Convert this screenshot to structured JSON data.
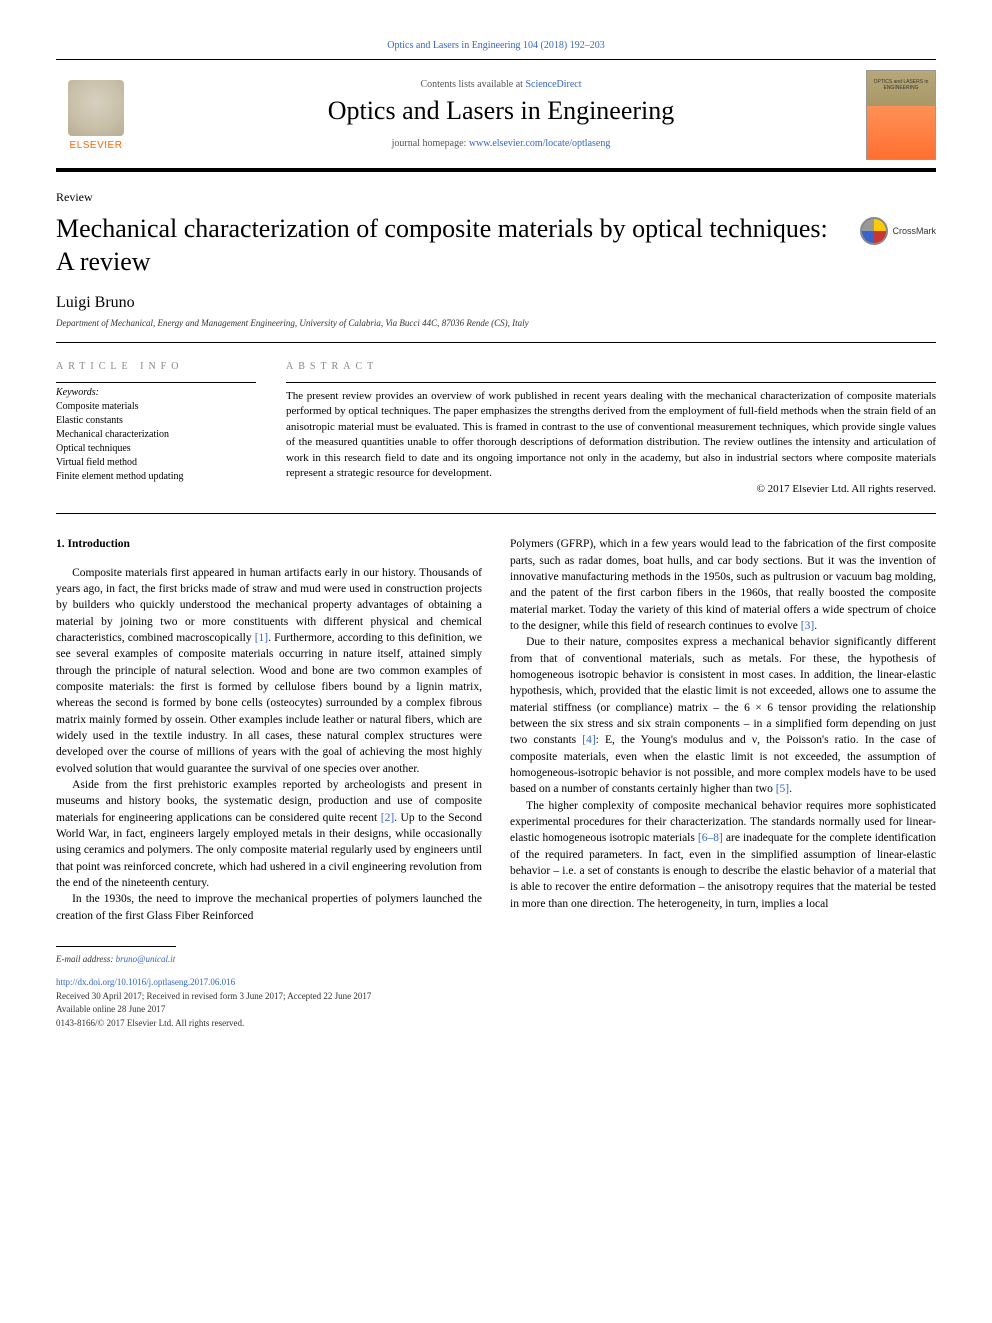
{
  "top_citation": "Optics and Lasers in Engineering 104 (2018) 192–203",
  "header": {
    "contents_prefix": "Contents lists available at ",
    "contents_link": "ScienceDirect",
    "journal_name": "Optics and Lasers in Engineering",
    "homepage_prefix": "journal homepage: ",
    "homepage_link": "www.elsevier.com/locate/optlaseng",
    "publisher": "ELSEVIER"
  },
  "article": {
    "type": "Review",
    "title": "Mechanical characterization of composite materials by optical techniques: A review",
    "author": "Luigi Bruno",
    "affiliation": "Department of Mechanical, Energy and Management Engineering, University of Calabria, Via Bucci 44C, 87036 Rende (CS), Italy",
    "crossmark": "CrossMark"
  },
  "info": {
    "label": "ARTICLE INFO",
    "keywords_label": "Keywords:",
    "keywords": [
      "Composite materials",
      "Elastic constants",
      "Mechanical characterization",
      "Optical techniques",
      "Virtual field method",
      "Finite element method updating"
    ]
  },
  "abstract": {
    "label": "ABSTRACT",
    "text": "The present review provides an overview of work published in recent years dealing with the mechanical characterization of composite materials performed by optical techniques. The paper emphasizes the strengths derived from the employment of full-field methods when the strain field of an anisotropic material must be evaluated. This is framed in contrast to the use of conventional measurement techniques, which provide single values of the measured quantities unable to offer thorough descriptions of deformation distribution. The review outlines the intensity and articulation of work in this research field to date and its ongoing importance not only in the academy, but also in industrial sectors where composite materials represent a strategic resource for development.",
    "copyright": "© 2017 Elsevier Ltd. All rights reserved."
  },
  "body": {
    "section1_heading": "1.  Introduction",
    "left_paragraphs": [
      "Composite materials first appeared in human artifacts early in our history. Thousands of years ago, in fact, the first bricks made of straw and mud were used in construction projects by builders who quickly understood the mechanical property advantages of obtaining a material by joining two or more constituents with different physical and chemical characteristics, combined macroscopically [1]. Furthermore, according to this definition, we see several examples of composite materials occurring in nature itself, attained simply through the principle of natural selection. Wood and bone are two common examples of composite materials: the first is formed by cellulose fibers bound by a lignin matrix, whereas the second is formed by bone cells (osteocytes) surrounded by a complex fibrous matrix mainly formed by ossein. Other examples include leather or natural fibers, which are widely used in the textile industry. In all cases, these natural complex structures were developed over the course of millions of years with the goal of achieving the most highly evolved solution that would guarantee the survival of one species over another.",
      "Aside from the first prehistoric examples reported by archeologists and present in museums and history books, the systematic design, production and use of composite materials for engineering applications can be considered quite recent [2]. Up to the Second World War, in fact, engineers largely employed metals in their designs, while occasionally using ceramics and polymers. The only composite material regularly used by engineers until that point was reinforced concrete, which had ushered in a civil engineering revolution from the end of the nineteenth century.",
      "In the 1930s, the need to improve the mechanical properties of polymers launched the creation of the first Glass Fiber Reinforced"
    ],
    "right_paragraphs": [
      "Polymers (GFRP), which in a few years would lead to the fabrication of the first composite parts, such as radar domes, boat hulls, and car body sections. But it was the invention of innovative manufacturing methods in the 1950s, such as pultrusion or vacuum bag molding, and the patent of the first carbon fibers in the 1960s, that really boosted the composite material market. Today the variety of this kind of material offers a wide spectrum of choice to the designer, while this field of research continues to evolve [3].",
      "Due to their nature, composites express a mechanical behavior significantly different from that of conventional materials, such as metals. For these, the hypothesis of homogeneous isotropic behavior is consistent in most cases. In addition, the linear-elastic hypothesis, which, provided that the elastic limit is not exceeded, allows one to assume the material stiffness (or compliance) matrix – the 6 × 6 tensor providing the relationship between the six stress and six strain components – in a simplified form depending on just two constants [4]: E, the Young's modulus and ν, the Poisson's ratio. In the case of composite materials, even when the elastic limit is not exceeded, the assumption of homogeneous-isotropic behavior is not possible, and more complex models have to be used based on a number of constants certainly higher than two [5].",
      "The higher complexity of composite mechanical behavior requires more sophisticated experimental procedures for their characterization. The standards normally used for linear-elastic homogeneous isotropic materials [6–8] are inadequate for the complete identification of the required parameters. In fact, even in the simplified assumption of linear-elastic behavior – i.e. a set of constants is enough to describe the elastic behavior of a material that is able to recover the entire deformation – the anisotropy requires that the material be tested in more than one direction. The heterogeneity, in turn, implies a local"
    ]
  },
  "footer": {
    "email_label": "E-mail address:",
    "email": "bruno@unical.it",
    "doi": "http://dx.doi.org/10.1016/j.optlaseng.2017.06.016",
    "received": "Received 30 April 2017; Received in revised form 3 June 2017; Accepted 22 June 2017",
    "online": "Available online 28 June 2017",
    "issn": "0143-8166/© 2017 Elsevier Ltd. All rights reserved."
  },
  "colors": {
    "link": "#3366cc",
    "elsevier_orange": "#ff6600",
    "text": "#000000",
    "meta_gray": "#888888"
  }
}
